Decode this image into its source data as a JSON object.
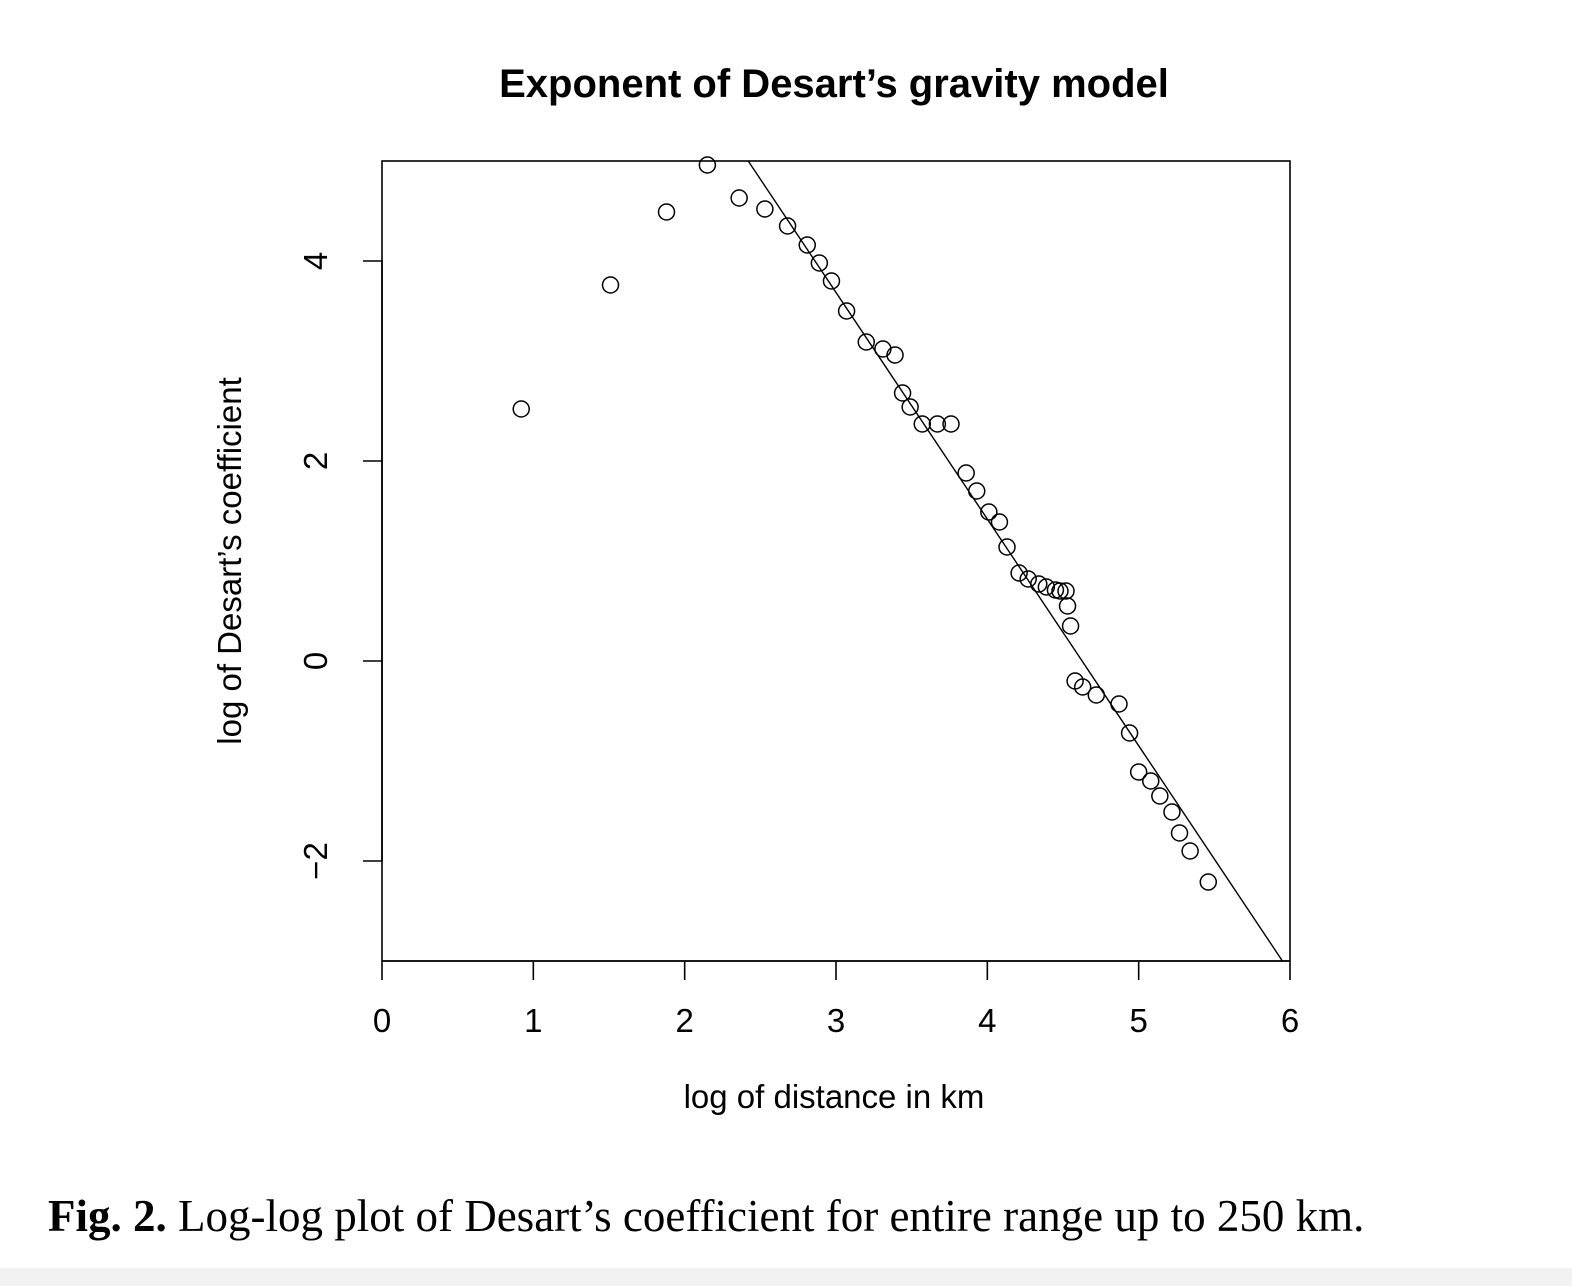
{
  "chart_data": {
    "type": "scatter",
    "title": "Exponent of Desart’s gravity model",
    "xlabel": "log of distance in km",
    "ylabel": "log of Desart’s coefficient",
    "xlim": [
      0,
      6
    ],
    "ylim": [
      -3,
      5
    ],
    "x_ticks": [
      0,
      1,
      2,
      3,
      4,
      5,
      6
    ],
    "x_tick_labels": [
      "0",
      "1",
      "2",
      "3",
      "4",
      "5",
      "6"
    ],
    "y_ticks": [
      -2,
      0,
      2,
      4
    ],
    "y_tick_labels": [
      "−2",
      "0",
      "2",
      "4"
    ],
    "grid": false,
    "points": [
      {
        "x": 0.92,
        "y": 2.52
      },
      {
        "x": 1.51,
        "y": 3.76
      },
      {
        "x": 1.88,
        "y": 4.49
      },
      {
        "x": 2.15,
        "y": 4.96
      },
      {
        "x": 2.36,
        "y": 4.63
      },
      {
        "x": 2.53,
        "y": 4.52
      },
      {
        "x": 2.68,
        "y": 4.35
      },
      {
        "x": 2.81,
        "y": 4.16
      },
      {
        "x": 2.89,
        "y": 3.98
      },
      {
        "x": 2.97,
        "y": 3.8
      },
      {
        "x": 3.07,
        "y": 3.5
      },
      {
        "x": 3.2,
        "y": 3.19
      },
      {
        "x": 3.31,
        "y": 3.12
      },
      {
        "x": 3.39,
        "y": 3.06
      },
      {
        "x": 3.44,
        "y": 2.68
      },
      {
        "x": 3.49,
        "y": 2.54
      },
      {
        "x": 3.57,
        "y": 2.37
      },
      {
        "x": 3.67,
        "y": 2.37
      },
      {
        "x": 3.76,
        "y": 2.37
      },
      {
        "x": 3.86,
        "y": 1.88
      },
      {
        "x": 3.93,
        "y": 1.7
      },
      {
        "x": 4.01,
        "y": 1.49
      },
      {
        "x": 4.08,
        "y": 1.39
      },
      {
        "x": 4.13,
        "y": 1.14
      },
      {
        "x": 4.21,
        "y": 0.88
      },
      {
        "x": 4.27,
        "y": 0.82
      },
      {
        "x": 4.34,
        "y": 0.77
      },
      {
        "x": 4.39,
        "y": 0.74
      },
      {
        "x": 4.45,
        "y": 0.71
      },
      {
        "x": 4.48,
        "y": 0.7
      },
      {
        "x": 4.52,
        "y": 0.7
      },
      {
        "x": 4.53,
        "y": 0.55
      },
      {
        "x": 4.55,
        "y": 0.35
      },
      {
        "x": 4.58,
        "y": -0.2
      },
      {
        "x": 4.63,
        "y": -0.26
      },
      {
        "x": 4.72,
        "y": -0.34
      },
      {
        "x": 4.87,
        "y": -0.43
      },
      {
        "x": 4.94,
        "y": -0.72
      },
      {
        "x": 5.0,
        "y": -1.11
      },
      {
        "x": 5.08,
        "y": -1.2
      },
      {
        "x": 5.14,
        "y": -1.35
      },
      {
        "x": 5.22,
        "y": -1.51
      },
      {
        "x": 5.27,
        "y": -1.72
      },
      {
        "x": 5.34,
        "y": -1.9
      },
      {
        "x": 5.46,
        "y": -2.21
      }
    ],
    "fit_line": {
      "x1": 2.42,
      "y1": 5.0,
      "x2": 5.95,
      "y2": -3.0
    }
  },
  "caption": {
    "label": "Fig. 2.",
    "text": " Log-log plot of Desart’s coefficient for entire range up to 250 km."
  }
}
